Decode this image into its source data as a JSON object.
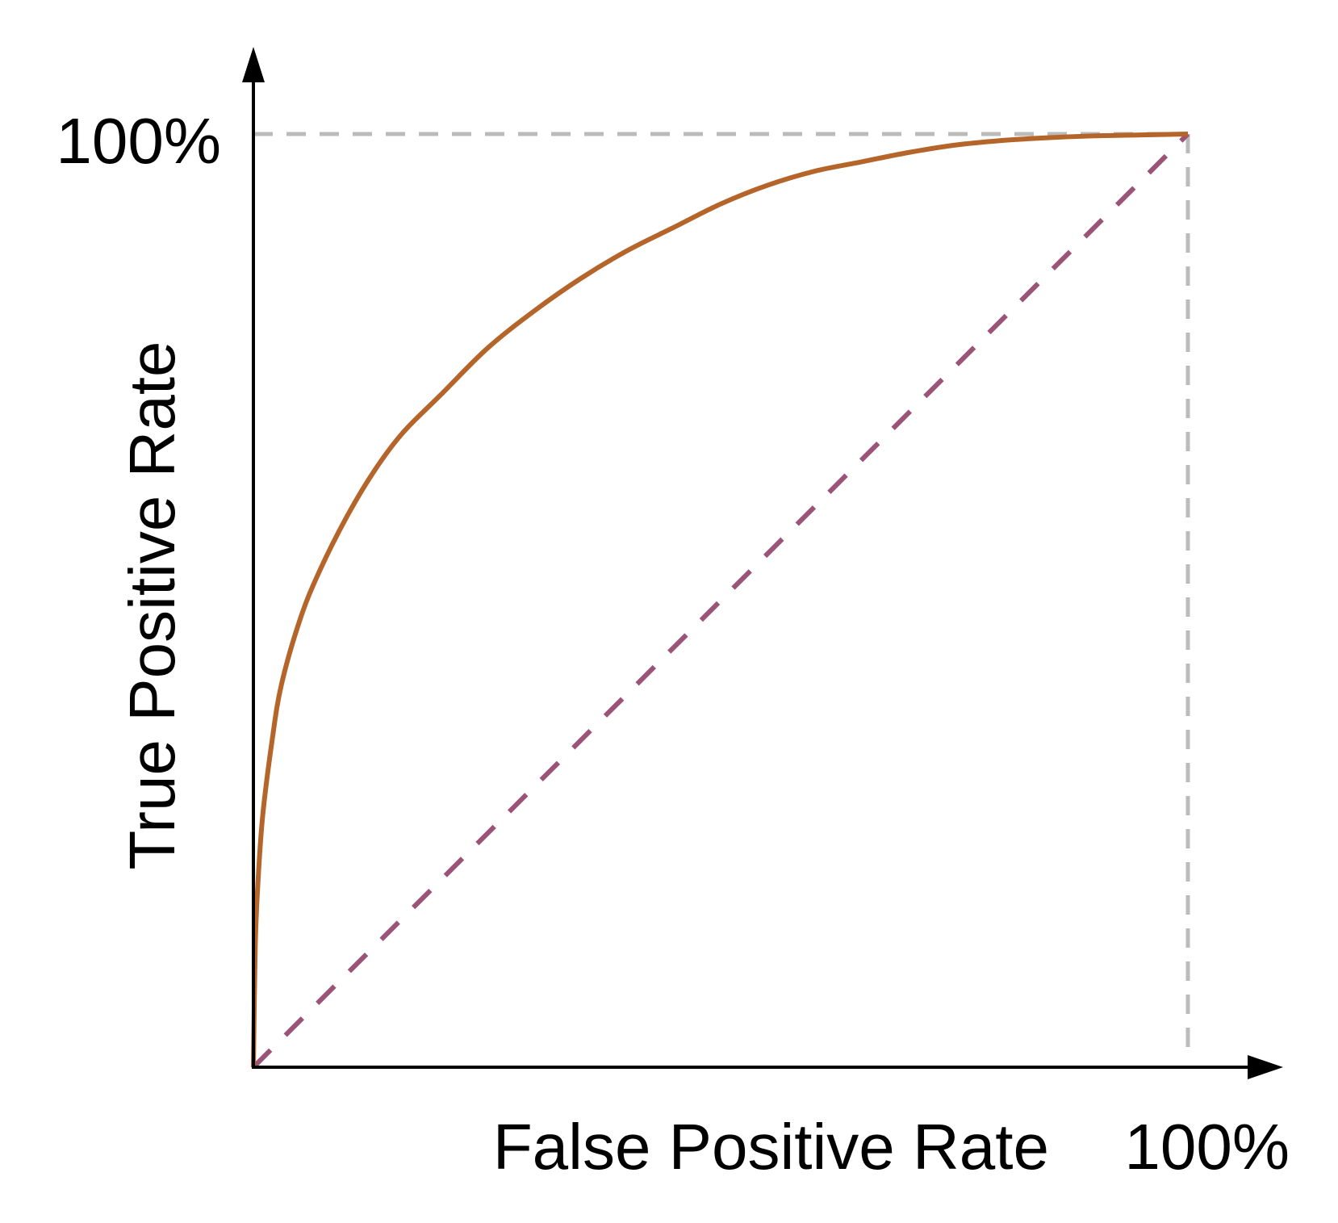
{
  "chart_data": {
    "type": "line",
    "title": "",
    "xlabel": "False Positive Rate",
    "ylabel": "True Positive Rate",
    "x_tick_labels": [
      "100%"
    ],
    "y_tick_labels": [
      "100%"
    ],
    "xlim": [
      0,
      1
    ],
    "ylim": [
      0,
      1
    ],
    "grid": false,
    "legend": "none",
    "series": [
      {
        "style": "solid",
        "color": "#b5652a",
        "x": [
          0,
          0.002,
          0.005,
          0.01,
          0.02,
          0.03,
          0.05,
          0.07,
          0.1,
          0.13,
          0.16,
          0.2,
          0.25,
          0.3,
          0.35,
          0.4,
          0.45,
          0.5,
          0.55,
          0.6,
          0.65,
          0.7,
          0.75,
          0.8,
          0.85,
          0.9,
          0.95,
          1.0
        ],
        "y": [
          0,
          0.13,
          0.2,
          0.27,
          0.35,
          0.41,
          0.48,
          0.53,
          0.59,
          0.64,
          0.68,
          0.72,
          0.77,
          0.81,
          0.845,
          0.875,
          0.9,
          0.925,
          0.945,
          0.96,
          0.97,
          0.98,
          0.988,
          0.993,
          0.996,
          0.998,
          0.999,
          1.0
        ]
      },
      {
        "style": "dashed",
        "color": "#9b5478",
        "x": [
          0,
          1
        ],
        "y": [
          0,
          1
        ]
      }
    ],
    "reference_lines": {
      "style": "dashed",
      "color": "#bbbbbb",
      "max_y": 1.0,
      "max_x": 1.0
    }
  }
}
